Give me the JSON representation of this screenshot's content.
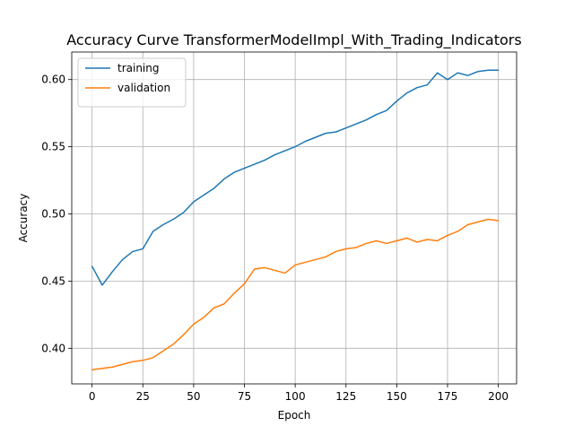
{
  "chart_data": {
    "type": "line",
    "title": "Accuracy Curve TransformerModelImpl_With_Trading_Indicators",
    "xlabel": "Epoch",
    "ylabel": "Accuracy",
    "xlim": [
      -10,
      209
    ],
    "ylim": [
      0.3735,
      0.6205
    ],
    "xticks": [
      0,
      25,
      50,
      75,
      100,
      125,
      150,
      175,
      200
    ],
    "yticks": [
      0.4,
      0.45,
      0.5,
      0.55,
      0.6
    ],
    "ytick_labels": [
      "0.40",
      "0.45",
      "0.50",
      "0.55",
      "0.60"
    ],
    "grid": true,
    "legend": {
      "placement": "top-left"
    },
    "x_step": 5,
    "series": [
      {
        "name": "training",
        "color": "#1f77b4",
        "values": [
          0.461,
          0.447,
          0.457,
          0.466,
          0.472,
          0.474,
          0.487,
          0.492,
          0.496,
          0.501,
          0.509,
          0.514,
          0.519,
          0.526,
          0.531,
          0.534,
          0.537,
          0.54,
          0.544,
          0.547,
          0.55,
          0.554,
          0.557,
          0.56,
          0.561,
          0.564,
          0.567,
          0.57,
          0.574,
          0.577,
          0.584,
          0.59,
          0.594,
          0.596,
          0.605,
          0.6,
          0.605,
          0.603,
          0.606,
          0.607,
          0.607
        ]
      },
      {
        "name": "validation",
        "color": "#ff7f0e",
        "values": [
          0.384,
          0.385,
          0.386,
          0.388,
          0.39,
          0.391,
          0.393,
          0.398,
          0.403,
          0.41,
          0.418,
          0.423,
          0.43,
          0.433,
          0.441,
          0.448,
          0.459,
          0.46,
          0.458,
          0.456,
          0.462,
          0.464,
          0.466,
          0.468,
          0.472,
          0.474,
          0.475,
          0.478,
          0.48,
          0.478,
          0.48,
          0.482,
          0.479,
          0.481,
          0.48,
          0.484,
          0.487,
          0.492,
          0.494,
          0.496,
          0.495
        ]
      }
    ]
  }
}
